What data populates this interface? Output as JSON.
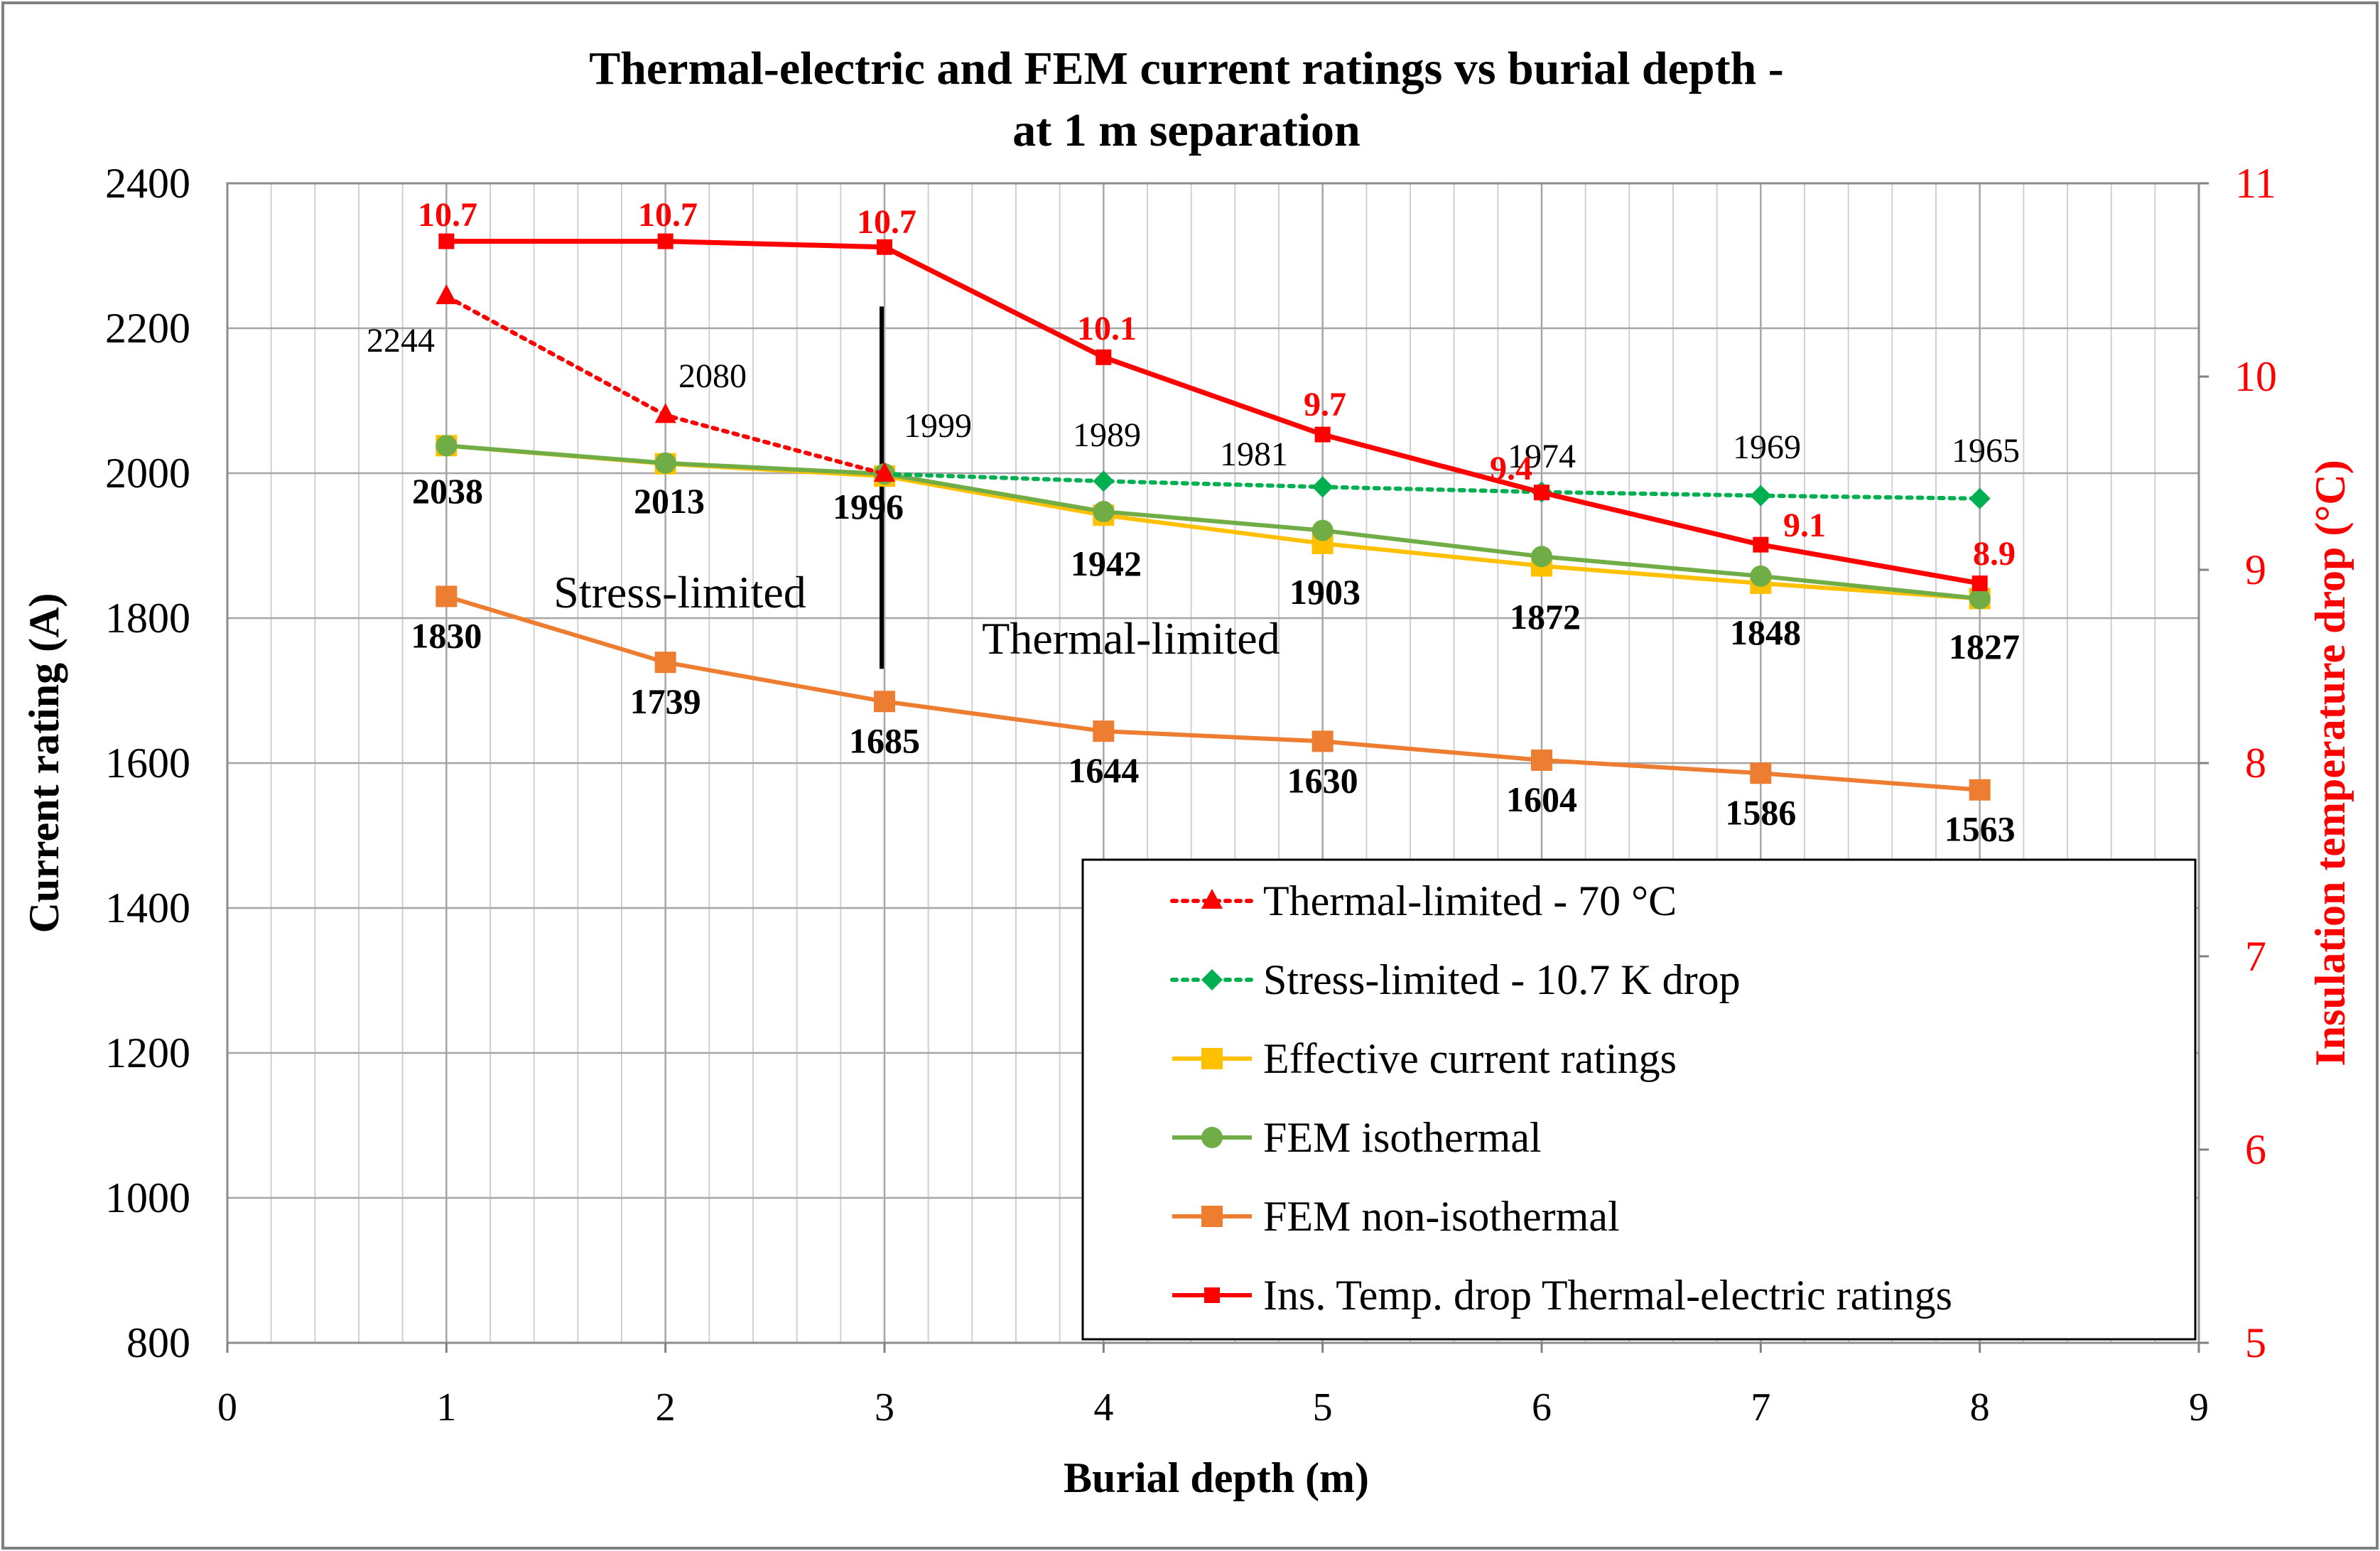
{
  "chart_data": {
    "type": "line",
    "title_line1": "Thermal-electric and FEM current ratings vs burial depth -",
    "title_line2": "at 1 m separation",
    "xlabel": "Burial depth (m)",
    "ylabel": "Current rating (A)",
    "y2label": "Insulation temperature drop (°C)",
    "xlim": [
      0,
      9
    ],
    "ylim": [
      800,
      2400
    ],
    "y2lim": [
      5,
      11
    ],
    "x_ticks": [
      "0",
      "1",
      "2",
      "3",
      "4",
      "5",
      "6",
      "7",
      "8",
      "9"
    ],
    "y_ticks": [
      "800",
      "1000",
      "1200",
      "1400",
      "1600",
      "1800",
      "2000",
      "2200",
      "2400"
    ],
    "y2_ticks": [
      "5",
      "6",
      "7",
      "8",
      "9",
      "10",
      "11"
    ],
    "colors": {
      "thermal": "#ff0000",
      "stress": "#00b050",
      "effective": "#ffc000",
      "fem_iso": "#70ad47",
      "fem_noniso": "#ed7d31",
      "ins_temp": "#ff0000",
      "grid": "#c0c0c0",
      "text": "#000000"
    },
    "series": [
      {
        "key": "thermal",
        "name": "Thermal-limited - 70 °C",
        "axis": "left",
        "style": "dotted",
        "marker": "triangle",
        "x": [
          1,
          2,
          3
        ],
        "values": [
          2244,
          2080,
          1999
        ]
      },
      {
        "key": "stress",
        "name": "Stress-limited - 10.7 K drop",
        "axis": "left",
        "style": "dotted",
        "marker": "diamond",
        "x": [
          3,
          4,
          5,
          6,
          7,
          8
        ],
        "values": [
          1999,
          1989,
          1981,
          1974,
          1969,
          1965
        ]
      },
      {
        "key": "effective",
        "name": "Effective current ratings",
        "axis": "left",
        "style": "solid",
        "marker": "square",
        "x": [
          1,
          2,
          3,
          4,
          5,
          6,
          7,
          8
        ],
        "values": [
          2038,
          2013,
          1996,
          1942,
          1903,
          1872,
          1848,
          1827
        ]
      },
      {
        "key": "fem_iso",
        "name": "FEM isothermal",
        "axis": "left",
        "style": "solid",
        "marker": "circle",
        "x": [
          1,
          2,
          3,
          4,
          5,
          6,
          7,
          8
        ],
        "values": [
          2038,
          2014,
          1999,
          1947,
          1921,
          1885,
          1858,
          1827
        ]
      },
      {
        "key": "fem_noniso",
        "name": "FEM non-isothermal",
        "axis": "left",
        "style": "solid",
        "marker": "square",
        "x": [
          1,
          2,
          3,
          4,
          5,
          6,
          7,
          8
        ],
        "values": [
          1830,
          1739,
          1685,
          1644,
          1630,
          1604,
          1586,
          1563
        ]
      },
      {
        "key": "ins_temp",
        "name": "Ins. Temp. drop Thermal-electric ratings",
        "axis": "right",
        "style": "solid",
        "marker": "square_small",
        "x": [
          1,
          2,
          3,
          4,
          5,
          6,
          7,
          8
        ],
        "values": [
          10.7,
          10.7,
          10.67,
          10.1,
          9.7,
          9.4,
          9.13,
          8.93
        ]
      }
    ],
    "labels": {
      "thermal": [
        "2244",
        "2080",
        "1999"
      ],
      "stress": [
        "1989",
        "1981",
        "1974",
        "1969",
        "1965"
      ],
      "effective": [
        "2038",
        "2013",
        "1996",
        "1942",
        "1903",
        "1872",
        "1848",
        "1827"
      ],
      "fem_noniso": [
        "1830",
        "1739",
        "1685",
        "1644",
        "1630",
        "1604",
        "1586",
        "1563"
      ],
      "ins_temp": [
        "10.7",
        "10.7",
        "10.7",
        "10.1",
        "9.7",
        "9.4",
        "9.1",
        "8.9"
      ]
    },
    "annotations": {
      "stress_region": "Stress-limited",
      "thermal_region": "Thermal-limited",
      "divider_x": 3,
      "divider_range": [
        1730,
        2230
      ]
    }
  }
}
